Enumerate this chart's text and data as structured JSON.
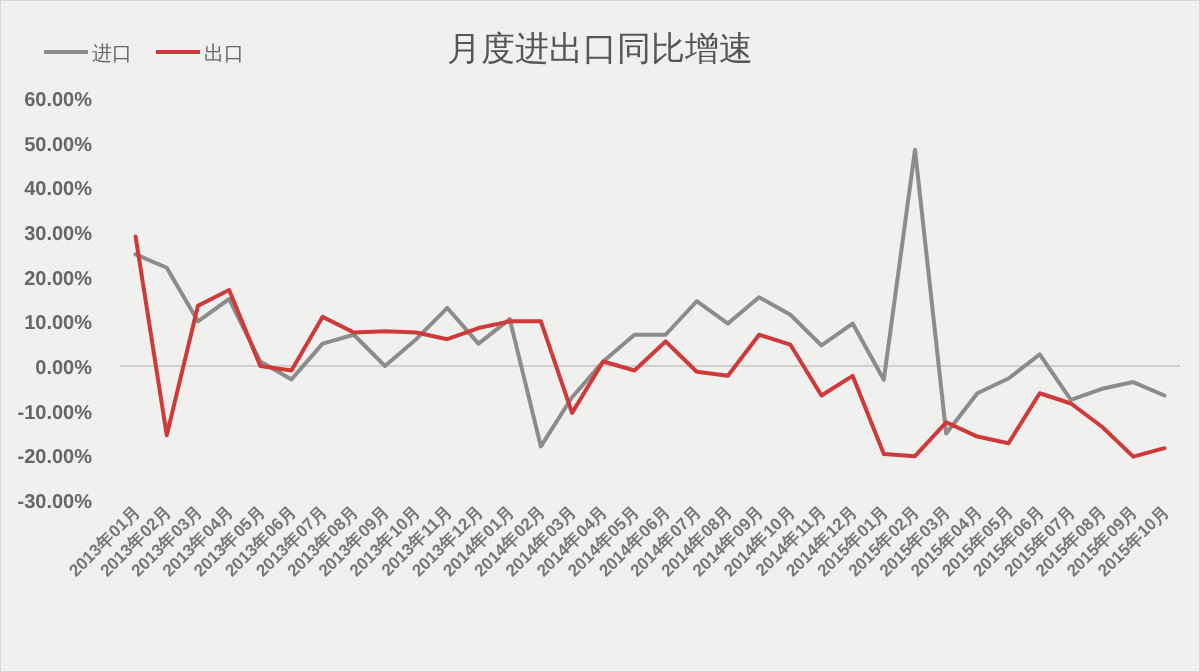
{
  "chart_data": {
    "type": "line",
    "title": "月度进出口同比增速",
    "legend": "top left",
    "marker": "none",
    "line_style": "solid",
    "categories": [
      "2013年01月",
      "2013年02月",
      "2013年03月",
      "2013年04月",
      "2013年05月",
      "2013年06月",
      "2013年07月",
      "2013年08月",
      "2013年09月",
      "2013年10月",
      "2013年11月",
      "2013年12月",
      "2014年01月",
      "2014年02月",
      "2014年03月",
      "2014年04月",
      "2014年05月",
      "2014年06月",
      "2014年07月",
      "2014年08月",
      "2014年09月",
      "2014年10月",
      "2014年11月",
      "2014年12月",
      "2015年01月",
      "2015年02月",
      "2015年03月",
      "2015年04月",
      "2015年05月",
      "2015年06月",
      "2015年07月",
      "2015年08月",
      "2015年09月",
      "2015年10月"
    ],
    "ylim": [
      -30,
      60
    ],
    "yticks": [
      {
        "value": -30,
        "label": "-30.00%"
      },
      {
        "value": -20,
        "label": "-20.00%"
      },
      {
        "value": -10,
        "label": "-10.00%"
      },
      {
        "value": 0,
        "label": "0.00%"
      },
      {
        "value": 10,
        "label": "10.00%"
      },
      {
        "value": 20,
        "label": "20.00%"
      },
      {
        "value": 30,
        "label": "30.00%"
      },
      {
        "value": 40,
        "label": "40.00%"
      },
      {
        "value": 50,
        "label": "50.00%"
      },
      {
        "value": 60,
        "label": "60.00%"
      }
    ],
    "series": [
      {
        "name": "进口",
        "color": "#8c8c8c",
        "values": [
          25,
          22,
          10,
          15,
          1,
          -3,
          5,
          7,
          0,
          6,
          13,
          5,
          10.5,
          -18,
          -7,
          1,
          7,
          7,
          14.5,
          9.5,
          15.4,
          11.5,
          4.6,
          9.5,
          -3.1,
          48.4,
          -15.1,
          -6.1,
          -2.8,
          2.6,
          -7.6,
          -5.1,
          -3.6,
          -6.6
        ]
      },
      {
        "name": "出口",
        "color": "#d0393a",
        "values": [
          29,
          -15.5,
          13.5,
          17,
          0,
          -1,
          11,
          7.5,
          7.8,
          7.5,
          6,
          8.5,
          10,
          10,
          -10.5,
          1,
          -1,
          5.5,
          -1.3,
          -2.2,
          7,
          4.8,
          -6.6,
          -2.2,
          -19.7,
          -20.2,
          -12.6,
          -15.8,
          -17.3,
          -6.1,
          -8.4,
          -13.6,
          -20.3,
          -18.4
        ]
      }
    ]
  }
}
